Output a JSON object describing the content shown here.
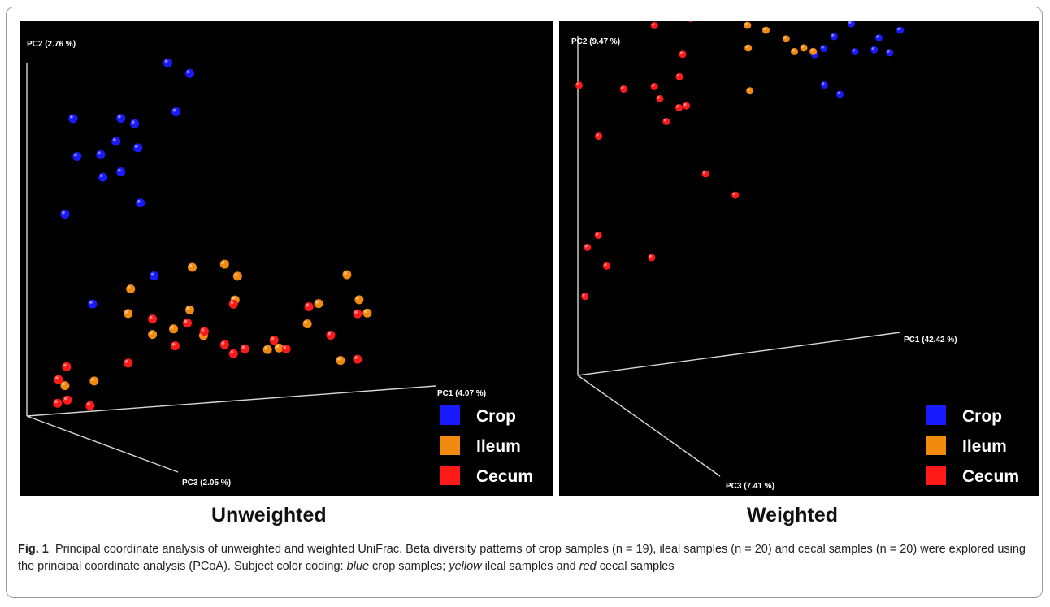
{
  "chart_data": [
    {
      "type": "scatter",
      "title": "Unweighted",
      "axes": {
        "x": "PC1 (4.07 %)",
        "y": "PC2 (2.76 %)",
        "z": "PC3 (2.05 %)"
      },
      "legend_placement": "bottom-right",
      "series": [
        {
          "name": "Crop",
          "color": "#1a1aff",
          "points": [
            [
              -1.55,
              2.28
            ],
            [
              -0.21,
              4.28
            ],
            [
              0.57,
              3.62
            ],
            [
              0.62,
              3.15
            ],
            [
              1.16,
              3.58
            ],
            [
              1.33,
              3.5
            ],
            [
              1.1,
              3.3
            ],
            [
              1.74,
              4.22
            ],
            [
              1.84,
              3.61
            ],
            [
              1.4,
              2.52
            ],
            [
              2.01,
              4.07
            ],
            [
              1.37,
              3.2
            ],
            [
              1.16,
              2.92
            ],
            [
              0.91,
              3.15
            ],
            [
              0.94,
              2.87
            ],
            [
              0.47,
              2.45
            ],
            [
              -1.14,
              2.84
            ],
            [
              1.57,
              1.61
            ],
            [
              0.81,
              1.32
            ]
          ]
        },
        {
          "name": "Ileum",
          "color": "#f28a10",
          "points": [
            [
              2.44,
              1.69
            ],
            [
              2.04,
              1.68
            ],
            [
              1.25,
              1.17
            ],
            [
              1.28,
              1.47
            ],
            [
              2.01,
              1.16
            ],
            [
              2.57,
              1.24
            ],
            [
              3.11,
              0.61
            ],
            [
              3.46,
              0.88
            ],
            [
              4.1,
              1.13
            ],
            [
              4.2,
              0.96
            ],
            [
              3.87,
              0.4
            ],
            [
              2.97,
              0.6
            ],
            [
              3.95,
              1.45
            ],
            [
              2.18,
              0.83
            ],
            [
              2.6,
              1.53
            ],
            [
              1.55,
              0.89
            ],
            [
              1.81,
              0.94
            ],
            [
              3.6,
              1.12
            ],
            [
              0.83,
              0.37
            ],
            [
              0.47,
              0.34
            ]
          ]
        },
        {
          "name": "Cecum",
          "color": "#ff1a1a",
          "points": [
            [
              2.69,
              0.63
            ],
            [
              0.5,
              0.16
            ],
            [
              0.78,
              0.07
            ],
            [
              0.49,
              0.57
            ],
            [
              4.08,
              0.96
            ],
            [
              3.48,
              1.09
            ],
            [
              3.75,
              0.72
            ],
            [
              4.08,
              0.4
            ],
            [
              3.05,
              0.71
            ],
            [
              3.2,
              0.59
            ],
            [
              1.98,
              1.0
            ],
            [
              1.55,
              1.08
            ],
            [
              2.44,
              0.7
            ],
            [
              2.55,
              0.58
            ],
            [
              2.19,
              0.88
            ],
            [
              2.55,
              1.19
            ],
            [
              1.83,
              0.73
            ],
            [
              1.25,
              0.56
            ],
            [
              0.39,
              0.42
            ],
            [
              0.38,
              0.13
            ]
          ]
        }
      ]
    },
    {
      "type": "scatter",
      "title": "Weighted",
      "axes": {
        "x": "PC1 (42.42 %)",
        "y": "PC2 (9.47 %)",
        "z": "PC3 (7.41 %)"
      },
      "legend_placement": "bottom-right",
      "series": [
        {
          "name": "Crop",
          "color": "#1a1aff",
          "points": [
            [
              23.07,
              4.16
            ],
            [
              25.26,
              4.17
            ],
            [
              26.6,
              4.05
            ],
            [
              29.11,
              4.05
            ],
            [
              32.02,
              4.22
            ],
            [
              32.22,
              4.09
            ],
            [
              33.94,
              3.88
            ],
            [
              35.81,
              3.95
            ],
            [
              31.81,
              3.75
            ],
            [
              30.54,
              3.62
            ],
            [
              29.4,
              3.56
            ],
            [
              30.6,
              3.17
            ],
            [
              32.54,
              3.03
            ],
            [
              34.4,
              3.53
            ],
            [
              37.03,
              4.01
            ],
            [
              37.37,
              3.66
            ],
            [
              36.79,
              3.52
            ],
            [
              38.71,
              3.46
            ],
            [
              40.0,
              3.72
            ]
          ]
        },
        {
          "name": "Ileum",
          "color": "#f28a10",
          "points": [
            [
              10.86,
              8.54
            ],
            [
              11.94,
              8.55
            ],
            [
              19.24,
              4.75
            ],
            [
              19.1,
              5.13
            ],
            [
              19.66,
              5.55
            ],
            [
              20.45,
              5.73
            ],
            [
              23.97,
              5.49
            ],
            [
              24.43,
              4.72
            ],
            [
              22.7,
              4.55
            ],
            [
              25.9,
              4.38
            ],
            [
              27.51,
              4.49
            ],
            [
              28.64,
              4.16
            ],
            [
              25.86,
              3.8
            ],
            [
              26.89,
              3.63
            ],
            [
              28.05,
              3.66
            ],
            [
              29.22,
              3.6
            ],
            [
              23.36,
              3.94
            ],
            [
              21.07,
              4.03
            ],
            [
              21.16,
              3.75
            ],
            [
              21.36,
              3.22
            ]
          ]
        },
        {
          "name": "Cecum",
          "color": "#ff1a1a",
          "points": [
            [
              4.08,
              5.05
            ],
            [
              9.51,
              4.18
            ],
            [
              13.01,
              3.78
            ],
            [
              14.01,
              4.21
            ],
            [
              0.15,
              3.57
            ],
            [
              5.69,
              3.45
            ],
            [
              2.58,
              2.91
            ],
            [
              12.61,
              3.51
            ],
            [
              12.56,
              3.13
            ],
            [
              9.49,
              3.43
            ],
            [
              10.18,
              3.27
            ],
            [
              10.99,
              2.98
            ],
            [
              13.48,
              3.14
            ],
            [
              1.19,
              1.56
            ],
            [
              2.54,
              1.69
            ],
            [
              9.16,
              1.33
            ],
            [
              15.85,
              2.27
            ],
            [
              19.55,
              1.96
            ],
            [
              0.87,
              0.96
            ],
            [
              3.57,
              1.3
            ]
          ]
        }
      ]
    }
  ],
  "titles": {
    "left": "Unweighted",
    "right": "Weighted"
  },
  "caption": {
    "fig_label": "Fig. 1",
    "part1": "Principal coordinate analysis of unweighted and weighted UniFrac. Beta diversity patterns of crop samples (n = 19), ileal samples (n = 20) and cecal samples (n = 20) were explored using the principal coordinate analysis (PCoA). Subject color coding: ",
    "term_blue": "blue",
    "part2": " crop samples; ",
    "term_yellow": "yellow",
    "part3": " ileal samples and ",
    "term_red": "red",
    "part4": " cecal samples"
  }
}
